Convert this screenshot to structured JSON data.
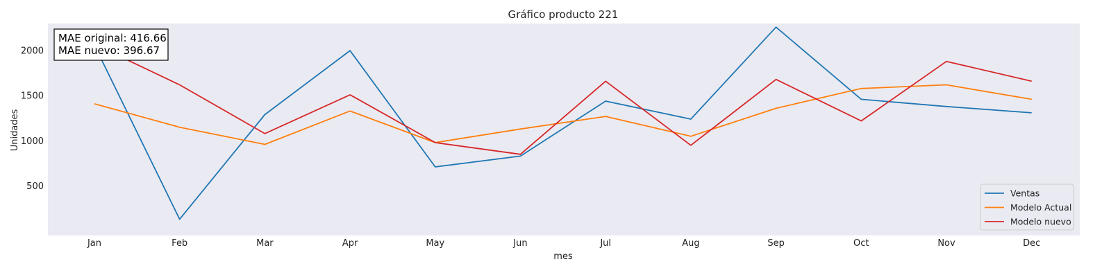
{
  "chart_data": {
    "type": "line",
    "title": "Gráfico producto 221",
    "xlabel": "mes",
    "ylabel": "Unidades",
    "categories": [
      "Jan",
      "Feb",
      "Mar",
      "Apr",
      "May",
      "Jun",
      "Jul",
      "Aug",
      "Sep",
      "Oct",
      "Nov",
      "Dec"
    ],
    "yticks": [
      500,
      1000,
      1500,
      2000
    ],
    "ylim": [
      -50,
      2300
    ],
    "grid": false,
    "legend_position": "lower-right",
    "annotation": {
      "line1": "MAE original: 416.66",
      "line2": "MAE nuevo: 396.67",
      "position": "top-left"
    },
    "series": [
      {
        "name": "Ventas",
        "color": "#1f77b4",
        "values": [
          2060,
          130,
          1290,
          2000,
          710,
          830,
          1440,
          1240,
          2260,
          1460,
          1380,
          1310
        ]
      },
      {
        "name": "Modelo Actual",
        "color": "#ff7f0e",
        "values": [
          1410,
          1150,
          960,
          1330,
          980,
          1130,
          1270,
          1050,
          1360,
          1580,
          1620,
          1460
        ]
      },
      {
        "name": "Modelo nuevo",
        "color": "#d62728",
        "values": [
          2070,
          1620,
          1080,
          1510,
          980,
          850,
          1660,
          950,
          1680,
          1220,
          1880,
          1660
        ]
      }
    ]
  }
}
